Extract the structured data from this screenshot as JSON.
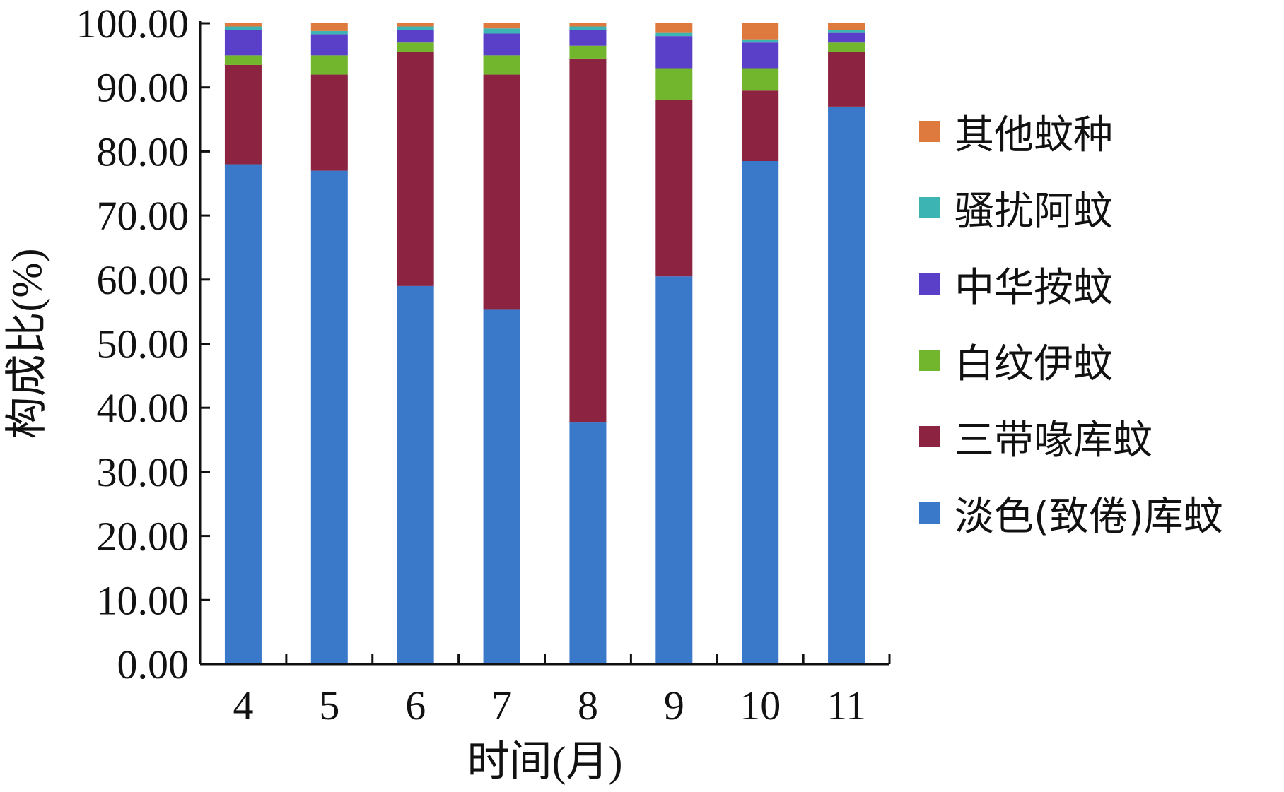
{
  "chart_data": {
    "type": "bar",
    "stacked": true,
    "xlabel": "时间(月)",
    "ylabel": "构成比(%)",
    "ylim": [
      0,
      100
    ],
    "y_ticks": [
      "0.00",
      "10.00",
      "20.00",
      "30.00",
      "40.00",
      "50.00",
      "60.00",
      "70.00",
      "80.00",
      "90.00",
      "100.00"
    ],
    "categories": [
      "4",
      "5",
      "6",
      "7",
      "8",
      "9",
      "10",
      "11"
    ],
    "legend_position": "right",
    "series": [
      {
        "name": "淡色(致倦)库蚊",
        "color": "#3a78c9",
        "values": [
          78.0,
          77.0,
          59.0,
          55.3,
          37.7,
          60.5,
          78.5,
          87.0
        ]
      },
      {
        "name": "三带喙库蚊",
        "color": "#8c2340",
        "values": [
          15.5,
          15.0,
          36.5,
          36.7,
          56.8,
          27.5,
          11.0,
          8.5
        ]
      },
      {
        "name": "白纹伊蚊",
        "color": "#72b62d",
        "values": [
          1.5,
          3.0,
          1.5,
          3.0,
          2.0,
          5.0,
          3.5,
          1.5
        ]
      },
      {
        "name": "中华按蚊",
        "color": "#5a3fc8",
        "values": [
          4.0,
          3.3,
          2.0,
          3.4,
          2.5,
          5.0,
          4.0,
          1.5
        ]
      },
      {
        "name": "骚扰阿蚊",
        "color": "#3cb4b4",
        "values": [
          0.5,
          0.5,
          0.5,
          0.8,
          0.5,
          0.5,
          0.5,
          0.5
        ]
      },
      {
        "name": "其他蚊种",
        "color": "#df7a3e",
        "values": [
          0.5,
          1.2,
          0.5,
          0.8,
          0.5,
          1.5,
          2.5,
          1.0
        ]
      }
    ]
  }
}
